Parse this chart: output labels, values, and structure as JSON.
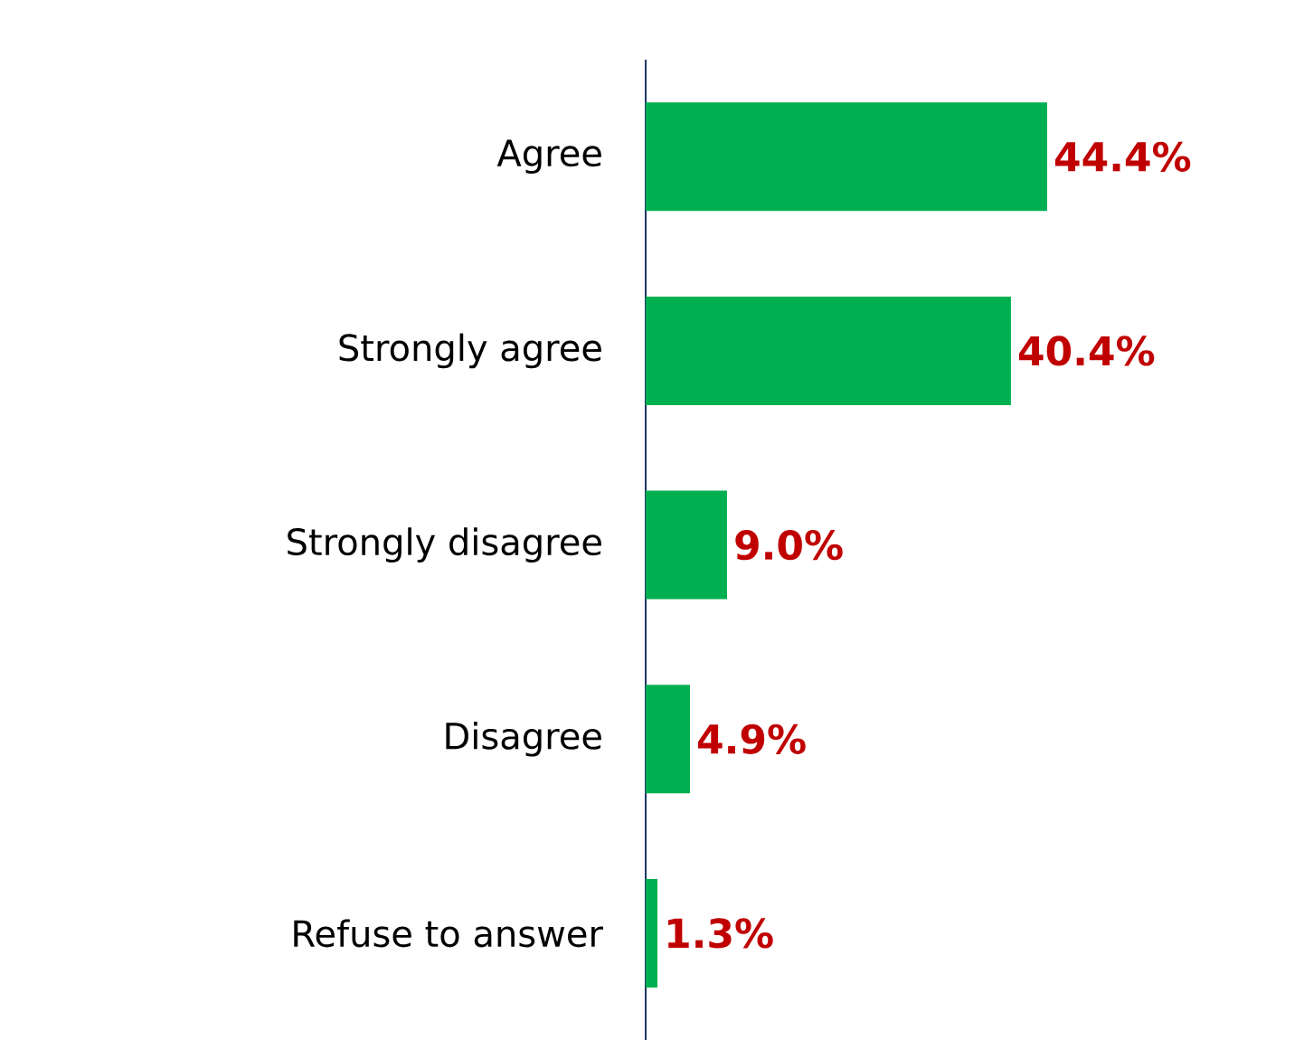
{
  "chart_data": {
    "type": "bar",
    "orientation": "horizontal",
    "categories": [
      "Agree",
      "Strongly agree",
      "Strongly disagree",
      "Disagree",
      "Refuse to answer"
    ],
    "values": [
      44.4,
      40.4,
      9.0,
      4.9,
      1.3
    ],
    "value_labels": [
      "44.4%",
      "40.4%",
      "9.0%",
      "4.9%",
      "1.3%"
    ],
    "color": "#00b050"
  }
}
